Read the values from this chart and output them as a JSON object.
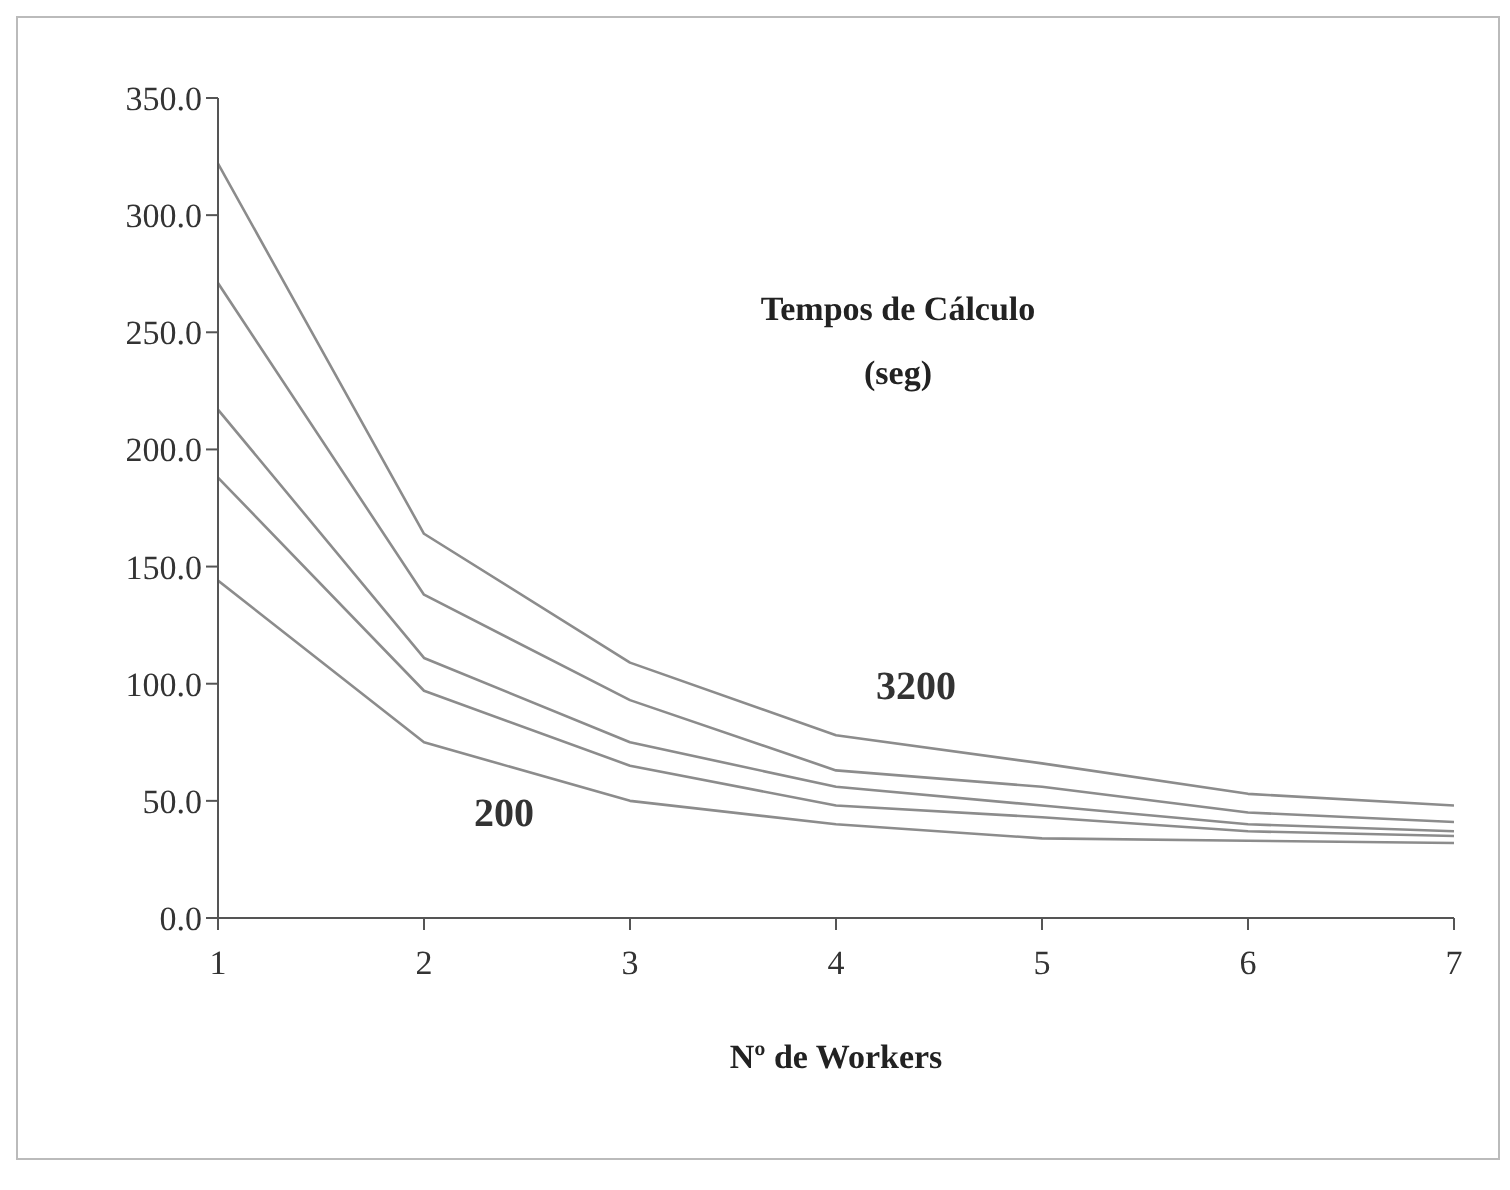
{
  "chart_data": {
    "type": "line",
    "title": "Tempos de Cálculo\n(seg)",
    "xlabel": "Nº de Workers",
    "x": [
      1,
      2,
      3,
      4,
      5,
      6,
      7
    ],
    "series": [
      {
        "name": "3200",
        "color": "#8c8c8c",
        "values": [
          322,
          164,
          109,
          78,
          66,
          53,
          48
        ]
      },
      {
        "color": "#8c8c8c",
        "values": [
          271,
          138,
          93,
          63,
          56,
          45,
          41
        ]
      },
      {
        "color": "#8c8c8c",
        "values": [
          217,
          111,
          75,
          56,
          48,
          40,
          37
        ]
      },
      {
        "color": "#8c8c8c",
        "values": [
          188,
          97,
          65,
          48,
          43,
          37,
          35
        ]
      },
      {
        "name": "200",
        "color": "#8c8c8c",
        "values": [
          144,
          75,
          50,
          40,
          34,
          33,
          32
        ]
      }
    ],
    "xlim": [
      1,
      7
    ],
    "xticks": [
      1,
      2,
      3,
      4,
      5,
      6,
      7
    ],
    "ylim": [
      0,
      350
    ],
    "yticks": [
      {
        "value": 0,
        "label": "0.0"
      },
      {
        "value": 50,
        "label": "50.0"
      },
      {
        "value": 100,
        "label": "100.0"
      },
      {
        "value": 150,
        "label": "150.0"
      },
      {
        "value": 200,
        "label": "200.0"
      },
      {
        "value": 250,
        "label": "250.0"
      },
      {
        "value": 300,
        "label": "300.0"
      },
      {
        "value": 350,
        "label": "350.0"
      }
    ],
    "grid": false,
    "legend": false,
    "marker": "none",
    "line_style": "solid"
  }
}
